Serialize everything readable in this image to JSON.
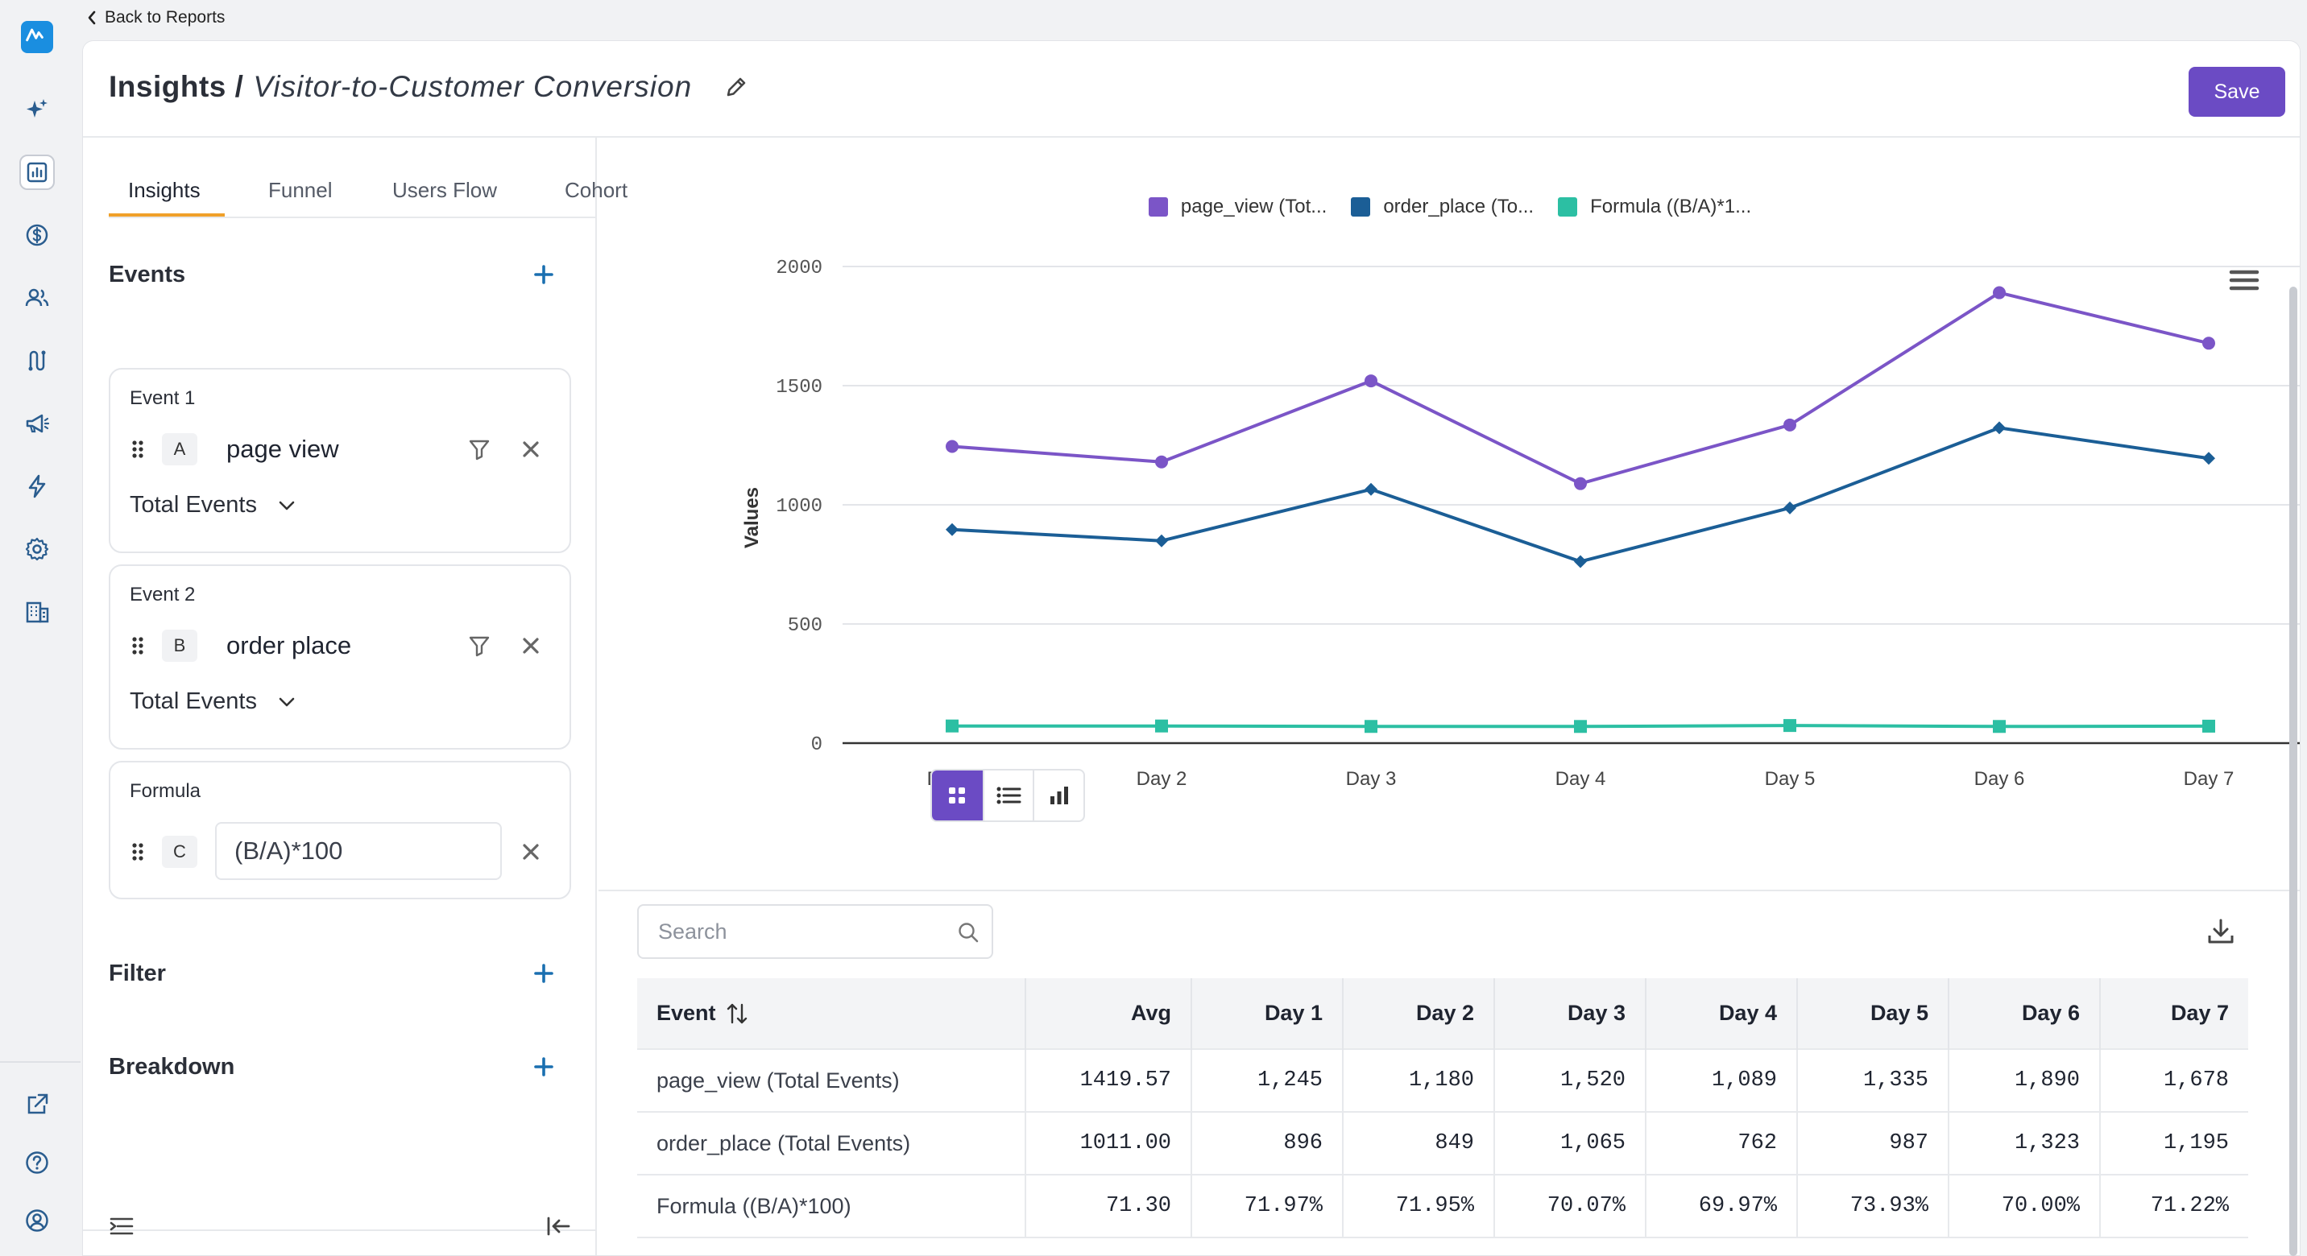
{
  "back_link": "Back to Reports",
  "header": {
    "crumb": "Insights /",
    "report_name": "Visitor-to-Customer Conversion",
    "save_label": "Save"
  },
  "nav": {
    "icons": [
      "logo-icon",
      "sparkles-icon",
      "reports-icon",
      "dollar-icon",
      "users-icon",
      "flow-icon",
      "megaphone-icon",
      "bolt-icon",
      "settings-icon",
      "building-icon",
      "external-link-icon",
      "help-icon",
      "account-icon"
    ],
    "active": "reports-icon"
  },
  "tabs": [
    "Insights",
    "Funnel",
    "Users Flow",
    "Cohort"
  ],
  "events_title": "Events",
  "events": [
    {
      "label": "Event 1",
      "letter": "A",
      "name": "page view",
      "measure": "Total Events"
    },
    {
      "label": "Event 2",
      "letter": "B",
      "name": "order place",
      "measure": "Total Events"
    }
  ],
  "formula": {
    "label": "Formula",
    "letter": "C",
    "value": "(B/A)*100"
  },
  "filter_title": "Filter",
  "breakdown_title": "Breakdown",
  "colors": {
    "accent": "#6b4bc4",
    "tab_underline": "#f0a02a",
    "plus": "#1a6fb0"
  },
  "chart_data": {
    "type": "line",
    "categories": [
      "Day 1",
      "Day 2",
      "Day 3",
      "Day 4",
      "Day 5",
      "Day 6",
      "Day 7"
    ],
    "ylabel": "Values",
    "yticks": [
      "0",
      "500",
      "1000",
      "1500",
      "2000"
    ],
    "ylim": [
      0,
      2000
    ],
    "grid": true,
    "legend_position": "top-center",
    "series": [
      {
        "name": "page_view (Tot...",
        "color": "#7b55c7",
        "marker": "circle",
        "values": [
          1245,
          1180,
          1520,
          1089,
          1335,
          1890,
          1678
        ]
      },
      {
        "name": "order_place (To...",
        "color": "#1b5e96",
        "marker": "diamond",
        "values": [
          896,
          849,
          1065,
          762,
          987,
          1323,
          1195
        ]
      },
      {
        "name": "Formula ((B/A)*1...",
        "color": "#2cbfa3",
        "marker": "square",
        "values": [
          71.97,
          71.95,
          70.07,
          69.97,
          73.93,
          70.0,
          71.22
        ]
      }
    ]
  },
  "search": {
    "placeholder": "Search"
  },
  "table": {
    "headers": [
      "Event",
      "Avg",
      "Day 1",
      "Day 2",
      "Day 3",
      "Day 4",
      "Day 5",
      "Day 6",
      "Day 7"
    ],
    "rows": [
      [
        "page_view (Total Events)",
        "1419.57",
        "1,245",
        "1,180",
        "1,520",
        "1,089",
        "1,335",
        "1,890",
        "1,678"
      ],
      [
        "order_place (Total Events)",
        "1011.00",
        "896",
        "849",
        "1,065",
        "762",
        "987",
        "1,323",
        "1,195"
      ],
      [
        "Formula ((B/A)*100)",
        "71.30",
        "71.97%",
        "71.95%",
        "70.07%",
        "69.97%",
        "73.93%",
        "70.00%",
        "71.22%"
      ]
    ]
  }
}
